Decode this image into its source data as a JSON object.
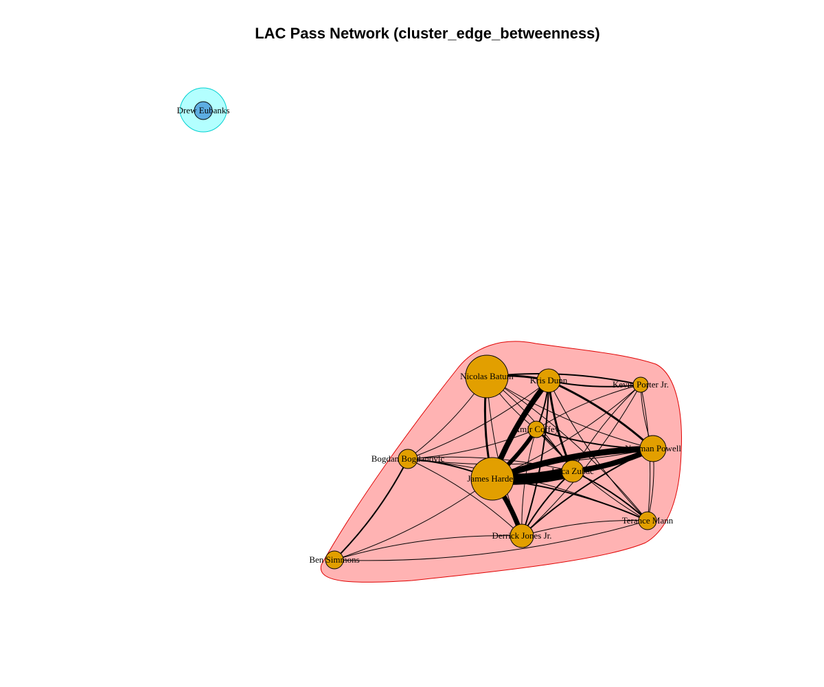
{
  "title": "LAC Pass Network (cluster_edge_betweenness)",
  "clusters": [
    {
      "name": "cluster-1",
      "fill": "#ffb3b3",
      "stroke": "#e00000",
      "members": [
        "Nicolas Batum",
        "Kris Dunn",
        "Kevin Porter Jr.",
        "Amir Coffey",
        "Norman Powell",
        "Bogdan Bogdanovic",
        "James Harden",
        "Ivica Zubac",
        "Terance Mann",
        "Derrick Jones Jr.",
        "Ben Simmons"
      ]
    },
    {
      "name": "cluster-2",
      "fill": "#b3ffff",
      "stroke": "#00d0d0",
      "members": [
        "Drew Eubanks"
      ]
    }
  ],
  "nodes": [
    {
      "id": "Drew Eubanks",
      "label": "Drew Eubanks",
      "color": "#5dade2",
      "size": 13
    },
    {
      "id": "Nicolas Batum",
      "label": "Nicolas Batum",
      "color": "#e29f00",
      "size": 31
    },
    {
      "id": "Kris Dunn",
      "label": "Kris Dunn",
      "color": "#e29f00",
      "size": 17
    },
    {
      "id": "Kevin Porter Jr.",
      "label": "Kevin Porter Jr.",
      "color": "#e29f00",
      "size": 11
    },
    {
      "id": "Amir Coffey",
      "label": "Amir Coffey",
      "color": "#e29f00",
      "size": 12
    },
    {
      "id": "Norman Powell",
      "label": "Norman Powell",
      "color": "#e29f00",
      "size": 19
    },
    {
      "id": "Bogdan Bogdanovic",
      "label": "Bogdan Bogdanovic",
      "color": "#e29f00",
      "size": 14
    },
    {
      "id": "James Harden",
      "label": "James Harden",
      "color": "#e29f00",
      "size": 31
    },
    {
      "id": "Ivica Zubac",
      "label": "Ivica Zubac",
      "color": "#e29f00",
      "size": 16
    },
    {
      "id": "Terance Mann",
      "label": "Terance Mann",
      "color": "#e29f00",
      "size": 13
    },
    {
      "id": "Derrick Jones Jr.",
      "label": "Derrick Jones Jr.",
      "color": "#e29f00",
      "size": 17
    },
    {
      "id": "Ben Simmons",
      "label": "Ben Simmons",
      "color": "#e29f00",
      "size": 13
    }
  ],
  "edges": [
    {
      "source": "James Harden",
      "target": "Ivica Zubac",
      "weight": 16
    },
    {
      "source": "James Harden",
      "target": "Norman Powell",
      "weight": 9
    },
    {
      "source": "Ivica Zubac",
      "target": "Norman Powell",
      "weight": 8
    },
    {
      "source": "James Harden",
      "target": "Kris Dunn",
      "weight": 8
    },
    {
      "source": "James Harden",
      "target": "Amir Coffey",
      "weight": 6
    },
    {
      "source": "James Harden",
      "target": "Derrick Jones Jr.",
      "weight": 7
    },
    {
      "source": "Kris Dunn",
      "target": "Ivica Zubac",
      "weight": 3
    },
    {
      "source": "Kris Dunn",
      "target": "Norman Powell",
      "weight": 3
    },
    {
      "source": "Kris Dunn",
      "target": "Nicolas Batum",
      "weight": 3
    },
    {
      "source": "Kris Dunn",
      "target": "Amir Coffey",
      "weight": 2
    },
    {
      "source": "Kris Dunn",
      "target": "Kevin Porter Jr.",
      "weight": 2
    },
    {
      "source": "Kris Dunn",
      "target": "Derrick Jones Jr.",
      "weight": 2
    },
    {
      "source": "Kris Dunn",
      "target": "Terance Mann",
      "weight": 1
    },
    {
      "source": "Kris Dunn",
      "target": "Bogdan Bogdanovic",
      "weight": 1
    },
    {
      "source": "Nicolas Batum",
      "target": "James Harden",
      "weight": 3
    },
    {
      "source": "Nicolas Batum",
      "target": "Kevin Porter Jr.",
      "weight": 2
    },
    {
      "source": "Nicolas Batum",
      "target": "Norman Powell",
      "weight": 1
    },
    {
      "source": "Nicolas Batum",
      "target": "Ivica Zubac",
      "weight": 1
    },
    {
      "source": "Nicolas Batum",
      "target": "Amir Coffey",
      "weight": 1
    },
    {
      "source": "Nicolas Batum",
      "target": "Bogdan Bogdanovic",
      "weight": 1
    },
    {
      "source": "Nicolas Batum",
      "target": "Derrick Jones Jr.",
      "weight": 1
    },
    {
      "source": "Nicolas Batum",
      "target": "Terance Mann",
      "weight": 1
    },
    {
      "source": "Kevin Porter Jr.",
      "target": "Norman Powell",
      "weight": 1
    },
    {
      "source": "Kevin Porter Jr.",
      "target": "James Harden",
      "weight": 1
    },
    {
      "source": "Kevin Porter Jr.",
      "target": "Ivica Zubac",
      "weight": 1
    },
    {
      "source": "Kevin Porter Jr.",
      "target": "Terance Mann",
      "weight": 1
    },
    {
      "source": "Kevin Porter Jr.",
      "target": "Amir Coffey",
      "weight": 1
    },
    {
      "source": "Kevin Porter Jr.",
      "target": "Derrick Jones Jr.",
      "weight": 1
    },
    {
      "source": "Amir Coffey",
      "target": "Norman Powell",
      "weight": 2
    },
    {
      "source": "Amir Coffey",
      "target": "Ivica Zubac",
      "weight": 2
    },
    {
      "source": "Amir Coffey",
      "target": "Derrick Jones Jr.",
      "weight": 1
    },
    {
      "source": "Amir Coffey",
      "target": "Bogdan Bogdanovic",
      "weight": 1
    },
    {
      "source": "Amir Coffey",
      "target": "Terance Mann",
      "weight": 1
    },
    {
      "source": "Norman Powell",
      "target": "Terance Mann",
      "weight": 1
    },
    {
      "source": "Norman Powell",
      "target": "Derrick Jones Jr.",
      "weight": 2
    },
    {
      "source": "Norman Powell",
      "target": "Bogdan Bogdanovic",
      "weight": 1
    },
    {
      "source": "Ivica Zubac",
      "target": "Derrick Jones Jr.",
      "weight": 2
    },
    {
      "source": "Ivica Zubac",
      "target": "Terance Mann",
      "weight": 2
    },
    {
      "source": "Ivica Zubac",
      "target": "Bogdan Bogdanovic",
      "weight": 1
    },
    {
      "source": "James Harden",
      "target": "Terance Mann",
      "weight": 2
    },
    {
      "source": "James Harden",
      "target": "Bogdan Bogdanovic",
      "weight": 2
    },
    {
      "source": "Derrick Jones Jr.",
      "target": "Terance Mann",
      "weight": 1
    },
    {
      "source": "Derrick Jones Jr.",
      "target": "Bogdan Bogdanovic",
      "weight": 1
    },
    {
      "source": "Bogdan Bogdanovic",
      "target": "Ben Simmons",
      "weight": 2
    },
    {
      "source": "Ben Simmons",
      "target": "James Harden",
      "weight": 1
    },
    {
      "source": "Ben Simmons",
      "target": "Derrick Jones Jr.",
      "weight": 1
    },
    {
      "source": "Ben Simmons",
      "target": "Terance Mann",
      "weight": 1
    },
    {
      "source": "Bogdan Bogdanovic",
      "target": "Terance Mann",
      "weight": 1
    }
  ]
}
